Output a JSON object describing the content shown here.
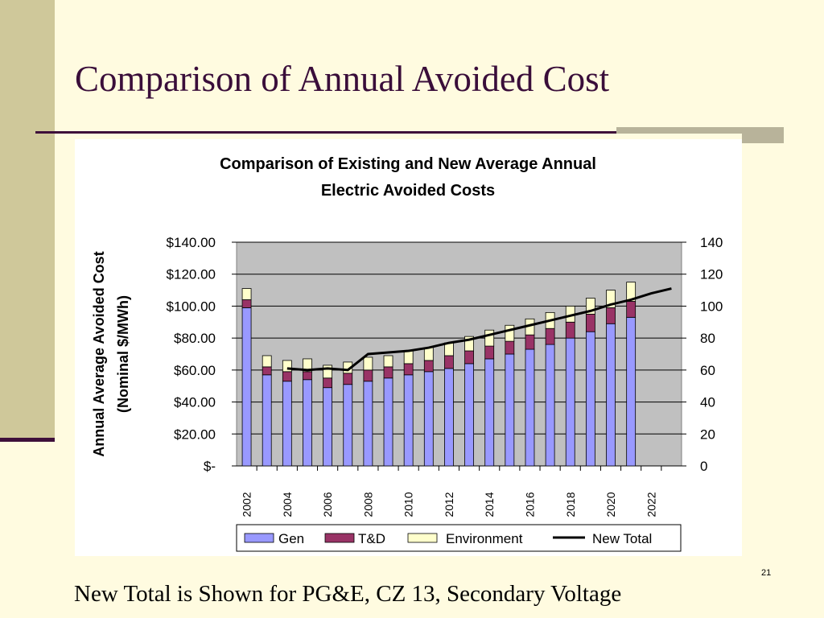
{
  "slide": {
    "title": "Comparison of Annual Avoided Cost",
    "footer": "New Total is Shown for PG&E, CZ 13, Secondary Voltage",
    "page_number": "21"
  },
  "colors": {
    "gen": "#9999ff",
    "td": "#993366",
    "environment": "#ffffcc",
    "new_total": "#000000",
    "plot_bg": "#c0c0c0"
  },
  "chart_data": {
    "type": "bar",
    "title_lines": [
      "Comparison of Existing and New Average Annual",
      "Electric Avoided Costs"
    ],
    "ylabel_lines": [
      "Annual Average Avoided Cost",
      "(Nominal $/MWh)"
    ],
    "xlabel": "",
    "ylim": [
      0,
      140
    ],
    "y2lim": [
      0,
      140
    ],
    "y_ticks": [
      "$-",
      "$20.00",
      "$40.00",
      "$60.00",
      "$80.00",
      "$100.00",
      "$120.00",
      "$140.00"
    ],
    "y2_ticks": [
      "0",
      "20",
      "40",
      "60",
      "80",
      "100",
      "120",
      "140"
    ],
    "x_tick_labels": [
      "2002",
      "2004",
      "2006",
      "2008",
      "2010",
      "2012",
      "2014",
      "2016",
      "2018",
      "2020",
      "2022"
    ],
    "categories": [
      2002,
      2003,
      2004,
      2005,
      2006,
      2007,
      2008,
      2009,
      2010,
      2011,
      2012,
      2013,
      2014,
      2015,
      2016,
      2017,
      2018,
      2019,
      2020,
      2021,
      2022
    ],
    "series": [
      {
        "name": "Gen",
        "kind": "bar",
        "values": [
          99,
          57,
          53,
          54,
          49,
          51,
          53,
          55,
          57,
          59,
          61,
          64,
          67,
          70,
          73,
          76,
          80,
          84,
          89,
          93,
          null
        ]
      },
      {
        "name": "T&D",
        "kind": "bar",
        "values": [
          5,
          5,
          6,
          5,
          6,
          7,
          7,
          7,
          7,
          7,
          8,
          8,
          8,
          8,
          9,
          10,
          10,
          11,
          10,
          10,
          null
        ]
      },
      {
        "name": "Environment",
        "kind": "bar",
        "values": [
          7,
          7,
          7,
          8,
          8,
          7,
          8,
          7,
          8,
          8,
          8,
          9,
          10,
          10,
          10,
          10,
          10,
          10,
          11,
          12,
          null
        ]
      },
      {
        "name": "New Total",
        "kind": "line",
        "values": [
          null,
          null,
          61,
          60,
          61,
          60,
          70,
          71,
          72,
          74,
          77,
          79,
          82,
          85,
          88,
          91,
          94,
          97,
          101,
          104,
          108
        ]
      }
    ],
    "extra_line_point": {
      "x": 2023,
      "y": 111
    },
    "legend_position": "bottom",
    "grid": true
  }
}
